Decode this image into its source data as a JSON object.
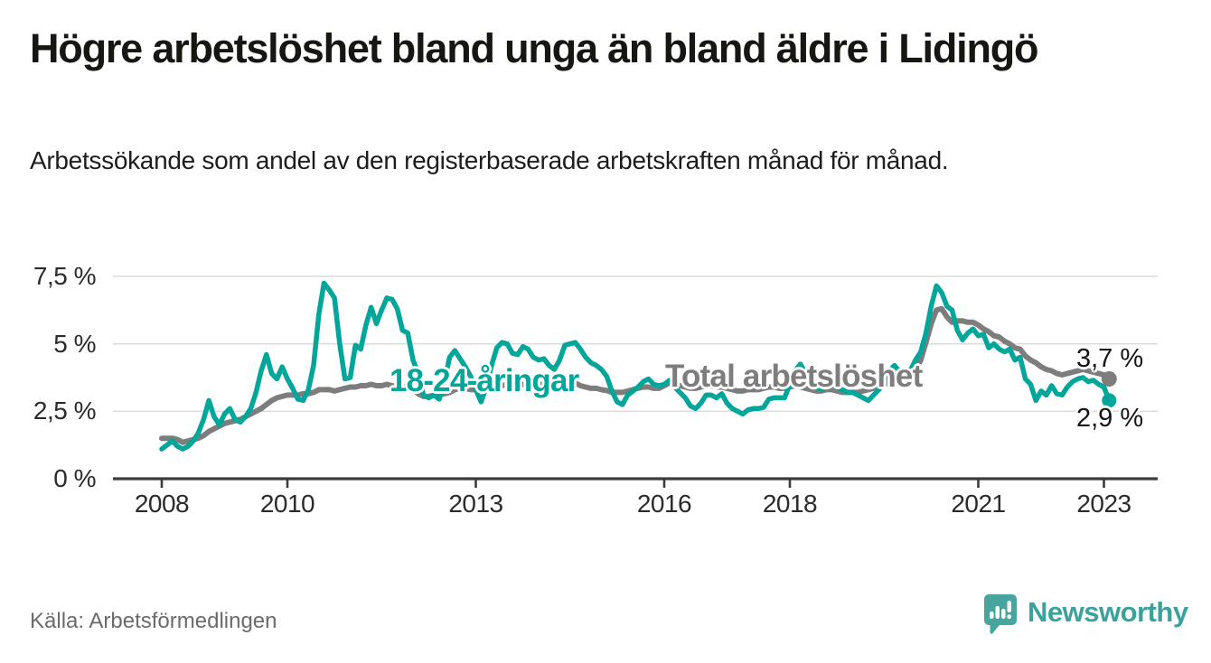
{
  "header": {
    "title": "Högre arbetslöshet bland unga än bland äldre i Lidingö",
    "subtitle": "Arbetssökande som andel av den registerbaserade arbetskraften månad för månad."
  },
  "source": {
    "label": "Källa: Arbetsförmedlingen"
  },
  "branding": {
    "wordmark": "Newsworthy",
    "icon": "speech-bubble-bar-chart-icon",
    "color": "#3ba29b"
  },
  "colors": {
    "young_line": "#00a69a",
    "total_line": "#7d7d7d",
    "gridline": "#dcdcdc",
    "axis": "#3c3c3c",
    "tick_text": "#2b2b2b",
    "value_text": "#141414"
  },
  "chart_data": {
    "type": "line",
    "x_frequency": "monthly",
    "x_start": "2008-01",
    "x_end": "2023-02",
    "ylim": [
      0,
      7.5
    ],
    "grid": "horizontal",
    "legend": "inline-labels",
    "y_ticks": [
      {
        "value": 7.5,
        "label": "7,5 %"
      },
      {
        "value": 5,
        "label": "5 %"
      },
      {
        "value": 2.5,
        "label": "2,5 %"
      },
      {
        "value": 0,
        "label": "0 %"
      }
    ],
    "x_ticks": [
      {
        "year": 2008,
        "label": "2008"
      },
      {
        "year": 2010,
        "label": "2010"
      },
      {
        "year": 2013,
        "label": "2013"
      },
      {
        "year": 2016,
        "label": "2016"
      },
      {
        "year": 2018,
        "label": "2018"
      },
      {
        "year": 2021,
        "label": "2021"
      },
      {
        "year": 2023,
        "label": "2023"
      }
    ],
    "y_gridlines": [
      2.5,
      5,
      7.5
    ],
    "series": [
      {
        "name": "Total arbetslöshet",
        "color": "#7d7d7d",
        "stroke_width": 6,
        "end_label": "3,7 %",
        "end_value": 3.7,
        "values": [
          1.5,
          1.5,
          1.5,
          1.45,
          1.35,
          1.4,
          1.45,
          1.5,
          1.6,
          1.75,
          1.85,
          1.95,
          2.05,
          2.1,
          2.15,
          2.2,
          2.3,
          2.4,
          2.5,
          2.6,
          2.75,
          2.9,
          3.0,
          3.05,
          3.1,
          3.1,
          3.1,
          3.15,
          3.15,
          3.2,
          3.3,
          3.3,
          3.3,
          3.25,
          3.3,
          3.35,
          3.4,
          3.4,
          3.45,
          3.45,
          3.5,
          3.45,
          3.45,
          3.5,
          3.45,
          3.4,
          3.4,
          3.4,
          3.3,
          3.15,
          3.05,
          3.05,
          3.1,
          3.1,
          3.15,
          3.2,
          3.3,
          3.35,
          3.35,
          3.3,
          3.3,
          3.25,
          3.3,
          3.35,
          3.4,
          3.45,
          3.5,
          3.45,
          3.45,
          3.5,
          3.5,
          3.5,
          3.5,
          3.5,
          3.45,
          3.45,
          3.5,
          3.6,
          3.6,
          3.55,
          3.45,
          3.4,
          3.35,
          3.35,
          3.3,
          3.27,
          3.2,
          3.2,
          3.2,
          3.25,
          3.3,
          3.35,
          3.4,
          3.4,
          3.35,
          3.35,
          3.45,
          3.55,
          3.5,
          3.45,
          3.4,
          3.35,
          3.35,
          3.4,
          3.45,
          3.45,
          3.4,
          3.4,
          3.35,
          3.3,
          3.25,
          3.25,
          3.3,
          3.3,
          3.3,
          3.35,
          3.4,
          3.4,
          3.35,
          3.35,
          3.4,
          3.45,
          3.4,
          3.35,
          3.3,
          3.25,
          3.25,
          3.3,
          3.3,
          3.25,
          3.2,
          3.2,
          3.2,
          3.2,
          3.25,
          3.3,
          3.35,
          3.4,
          3.5,
          3.55,
          3.6,
          3.7,
          3.8,
          3.9,
          4.0,
          4.4,
          5.05,
          5.75,
          6.25,
          6.3,
          6.0,
          5.8,
          5.85,
          5.85,
          5.8,
          5.8,
          5.7,
          5.55,
          5.45,
          5.3,
          5.25,
          5.1,
          5.0,
          4.85,
          4.8,
          4.55,
          4.4,
          4.3,
          4.15,
          4.05,
          4.0,
          3.9,
          3.85,
          3.9,
          3.95,
          4.0,
          4.05,
          4.0,
          3.95,
          3.9,
          3.85,
          3.7
        ]
      },
      {
        "name": "18-24-åringar",
        "color": "#00a69a",
        "stroke_width": 5.5,
        "end_label": "2,9 %",
        "end_value": 2.9,
        "values": [
          1.1,
          1.25,
          1.4,
          1.2,
          1.1,
          1.2,
          1.4,
          1.7,
          2.2,
          2.9,
          2.3,
          2.0,
          2.4,
          2.6,
          2.2,
          2.1,
          2.3,
          2.6,
          3.2,
          4.0,
          4.6,
          3.9,
          3.7,
          4.15,
          3.7,
          3.35,
          2.95,
          2.9,
          3.3,
          4.2,
          6.1,
          7.25,
          7.0,
          6.7,
          5.0,
          3.7,
          3.75,
          4.95,
          4.8,
          5.7,
          6.35,
          5.75,
          6.25,
          6.7,
          6.65,
          6.3,
          5.5,
          5.4,
          4.4,
          3.9,
          3.1,
          3.0,
          3.1,
          2.95,
          3.6,
          4.5,
          4.75,
          4.45,
          4.15,
          3.8,
          3.3,
          2.85,
          3.4,
          4.2,
          4.85,
          5.05,
          5.0,
          4.65,
          4.6,
          4.9,
          4.8,
          4.5,
          4.4,
          4.45,
          4.2,
          4.05,
          4.4,
          4.95,
          5.0,
          5.05,
          4.8,
          4.5,
          4.3,
          4.2,
          4.05,
          3.8,
          3.25,
          2.85,
          2.75,
          3.1,
          3.25,
          3.4,
          3.6,
          3.7,
          3.5,
          3.45,
          3.5,
          3.65,
          3.4,
          3.2,
          3.0,
          2.7,
          2.6,
          2.8,
          3.1,
          3.1,
          3.0,
          3.15,
          2.8,
          2.6,
          2.5,
          2.4,
          2.55,
          2.6,
          2.6,
          2.65,
          2.95,
          3.0,
          3.0,
          3.0,
          3.5,
          4.0,
          4.25,
          3.9,
          3.6,
          3.4,
          3.3,
          3.4,
          3.5,
          3.4,
          3.3,
          3.2,
          3.2,
          3.1,
          3.0,
          2.9,
          3.1,
          3.3,
          3.6,
          4.0,
          4.2,
          3.95,
          4.05,
          4.0,
          4.4,
          4.7,
          5.4,
          6.4,
          7.15,
          6.9,
          6.4,
          6.25,
          5.5,
          5.15,
          5.4,
          5.55,
          5.3,
          5.35,
          4.85,
          5.0,
          4.8,
          4.7,
          4.8,
          4.4,
          4.5,
          3.7,
          3.5,
          2.9,
          3.25,
          3.1,
          3.45,
          3.15,
          3.1,
          3.4,
          3.6,
          3.7,
          3.75,
          3.6,
          3.65,
          3.5,
          3.4,
          2.9
        ]
      }
    ]
  }
}
